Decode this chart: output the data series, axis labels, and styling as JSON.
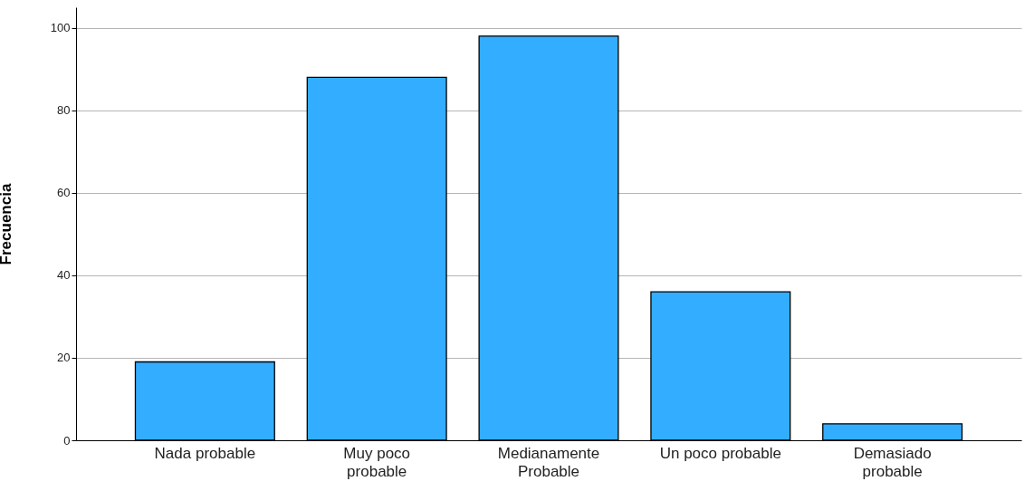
{
  "chart_data": {
    "type": "bar",
    "ylabel": "Frecuencia",
    "categories": [
      "Nada probable",
      "Muy poco\nprobable",
      "Medianamente\nProbable",
      "Un poco probable",
      "Demasiado\nprobable"
    ],
    "values": [
      19,
      88,
      98,
      36,
      4
    ],
    "color": "#33adff",
    "ylim": [
      0,
      105
    ],
    "yticks": [
      0,
      20,
      40,
      60,
      80,
      100
    ],
    "grid": "y"
  }
}
